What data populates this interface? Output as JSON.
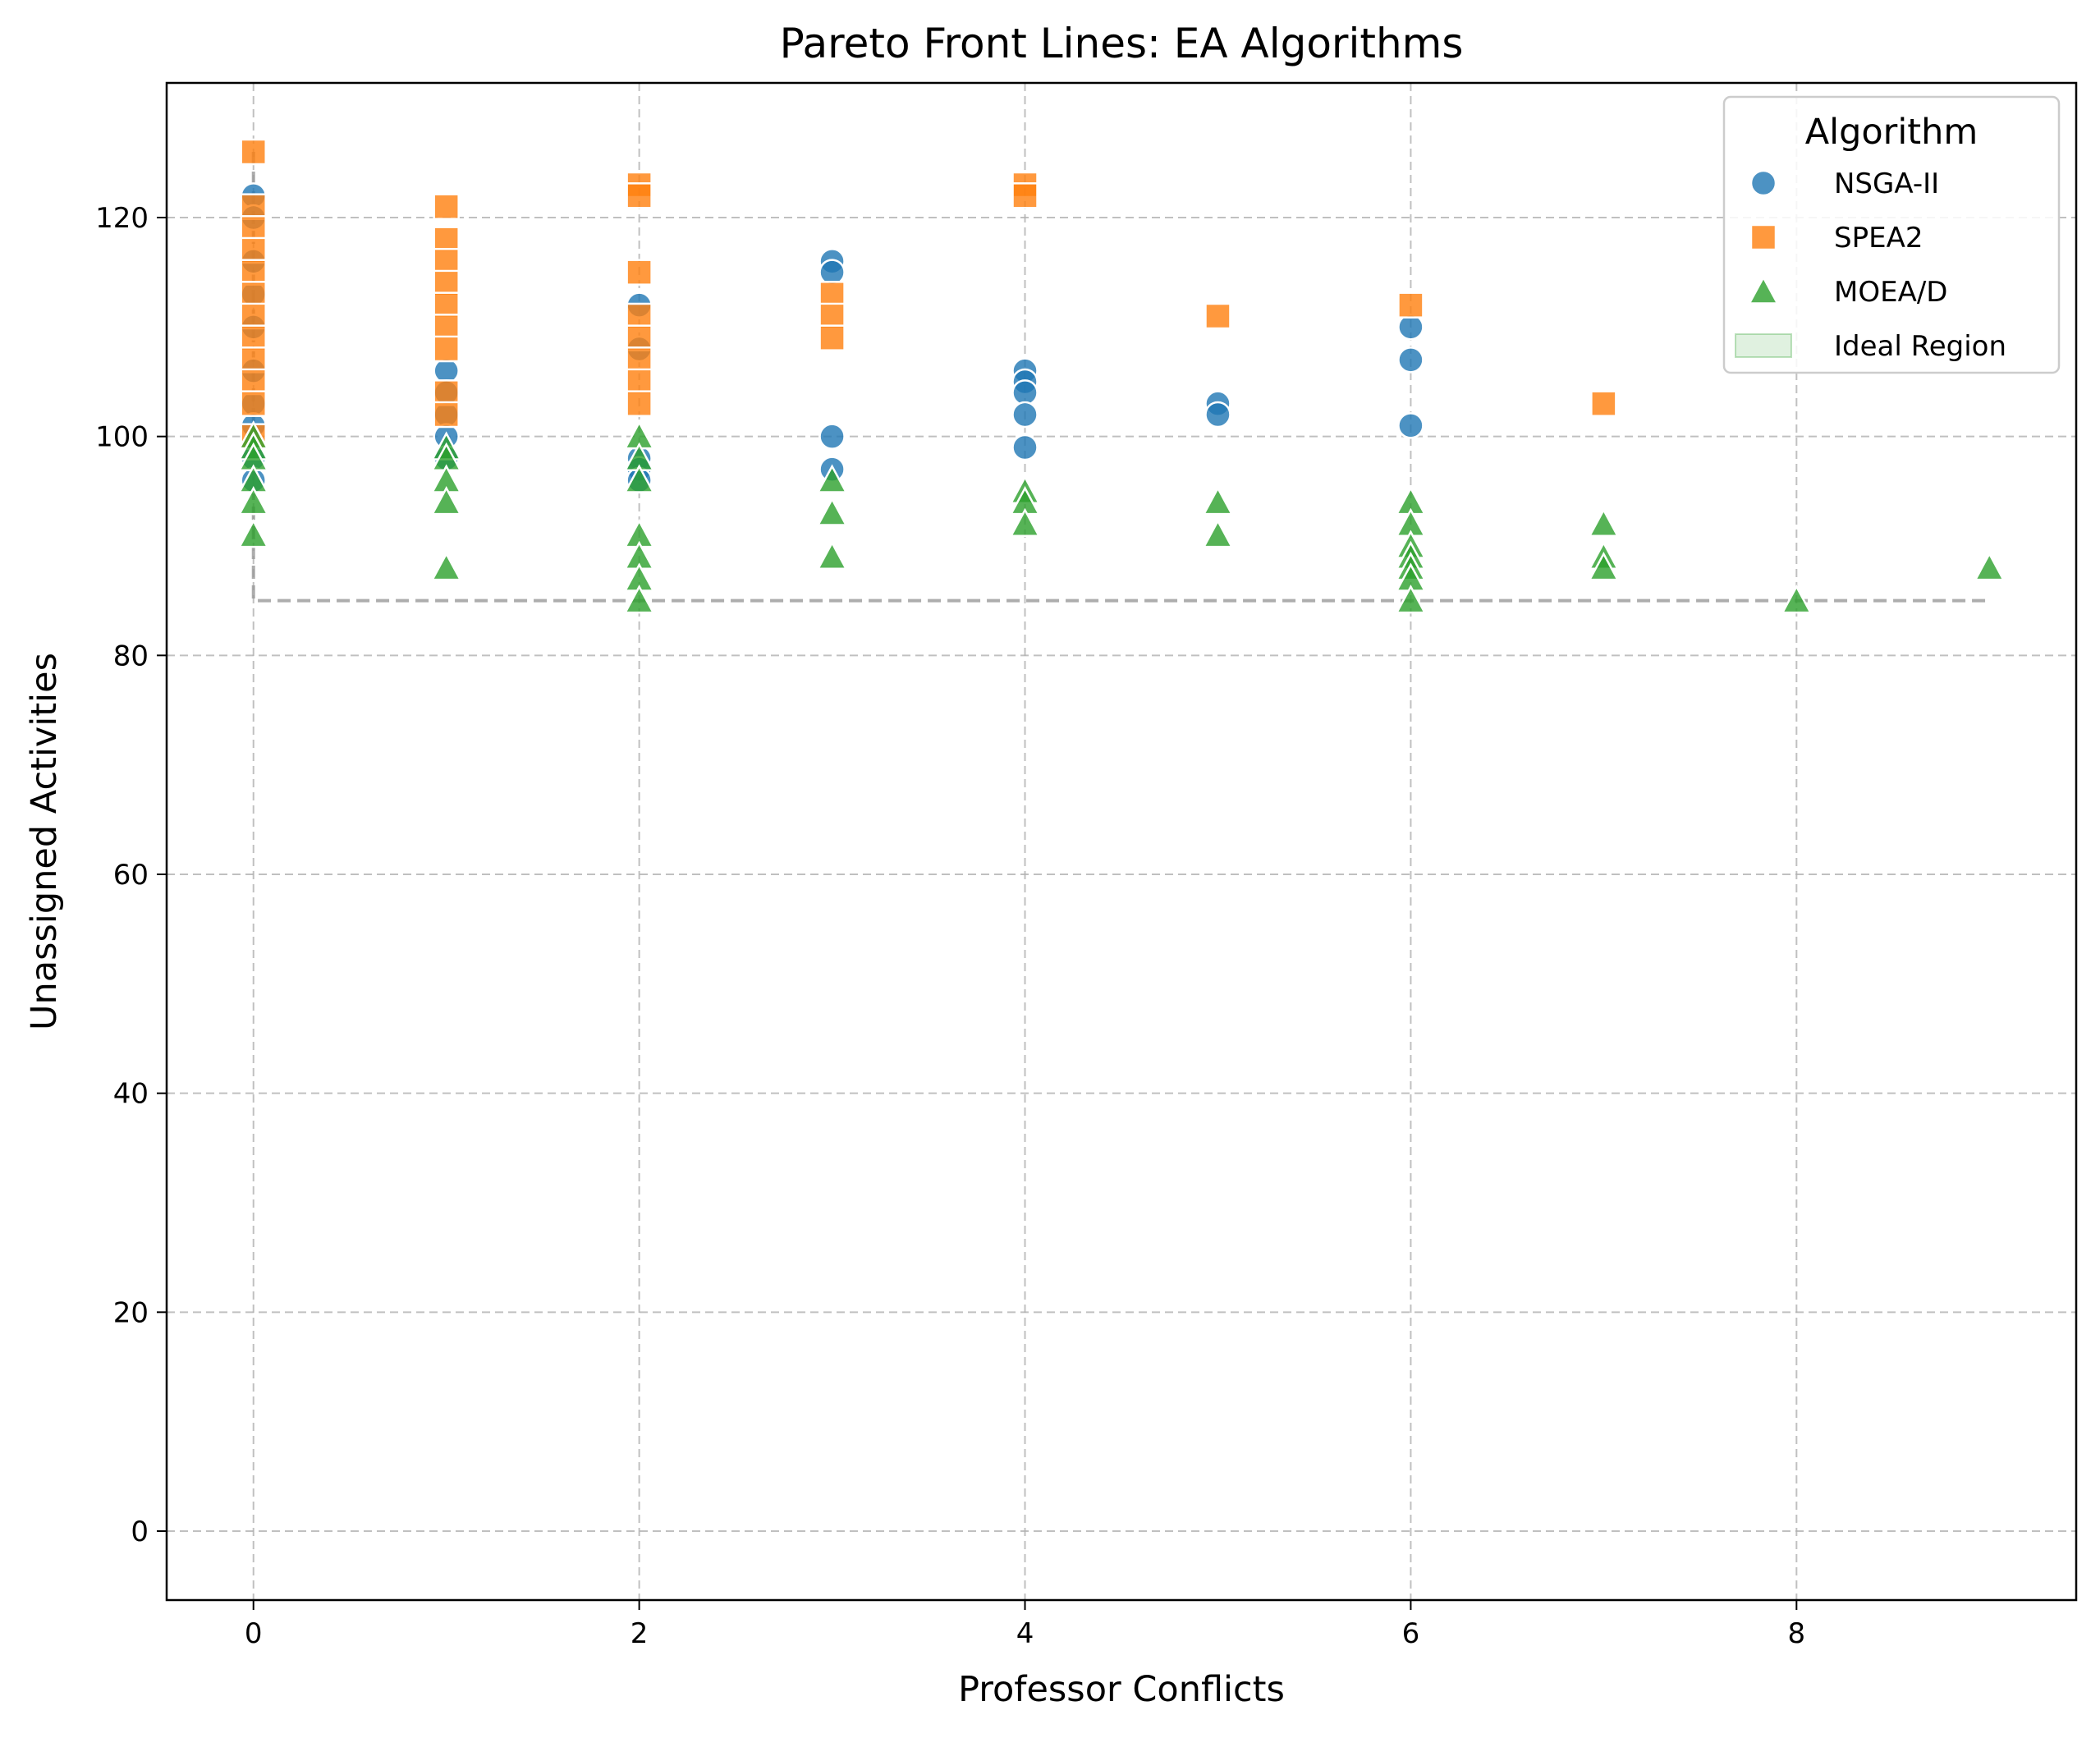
{
  "chart_data": {
    "type": "scatter",
    "title": "Pareto Front Lines: EA Algorithms",
    "xlabel": "Professor Conflicts",
    "ylabel": "Unassigned Activities",
    "xlim": [
      -0.45,
      9.45
    ],
    "ylim": [
      -6.3,
      132.3
    ],
    "xticks": [
      0,
      2,
      4,
      6,
      8
    ],
    "yticks": [
      0,
      20,
      40,
      60,
      80,
      100,
      120
    ],
    "grid": true,
    "legend": {
      "title": "Algorithm",
      "position": "top-right"
    },
    "series": [
      {
        "name": "NSGA-II",
        "marker": "circle",
        "color": "#1f77b4",
        "points": [
          [
            0,
            122
          ],
          [
            0,
            120
          ],
          [
            0,
            116
          ],
          [
            0,
            113
          ],
          [
            0,
            110
          ],
          [
            0,
            106
          ],
          [
            0,
            103
          ],
          [
            0,
            101
          ],
          [
            0,
            98
          ],
          [
            0,
            96
          ],
          [
            1,
            106
          ],
          [
            1,
            104
          ],
          [
            1,
            102
          ],
          [
            1,
            100
          ],
          [
            1,
            98
          ],
          [
            2,
            112
          ],
          [
            2,
            108
          ],
          [
            2,
            98
          ],
          [
            2,
            97
          ],
          [
            2,
            96
          ],
          [
            3,
            116
          ],
          [
            3,
            115
          ],
          [
            3,
            100
          ],
          [
            3,
            97
          ],
          [
            4,
            106
          ],
          [
            4,
            105
          ],
          [
            4,
            104
          ],
          [
            4,
            102
          ],
          [
            4,
            99
          ],
          [
            5,
            103
          ],
          [
            5,
            102
          ],
          [
            6,
            110
          ],
          [
            6,
            107
          ],
          [
            6,
            101
          ]
        ]
      },
      {
        "name": "SPEA2",
        "marker": "square",
        "color": "#ff7f0e",
        "points": [
          [
            0,
            126
          ],
          [
            0,
            121
          ],
          [
            0,
            119
          ],
          [
            0,
            117
          ],
          [
            0,
            115
          ],
          [
            0,
            113
          ],
          [
            0,
            111
          ],
          [
            0,
            109
          ],
          [
            0,
            107
          ],
          [
            0,
            105
          ],
          [
            0,
            103
          ],
          [
            0,
            100
          ],
          [
            1,
            121
          ],
          [
            1,
            118
          ],
          [
            1,
            116
          ],
          [
            1,
            114
          ],
          [
            1,
            112
          ],
          [
            1,
            110
          ],
          [
            1,
            108
          ],
          [
            1,
            104
          ],
          [
            1,
            102
          ],
          [
            2,
            123
          ],
          [
            2,
            122
          ],
          [
            2,
            115
          ],
          [
            2,
            111
          ],
          [
            2,
            109
          ],
          [
            2,
            107
          ],
          [
            2,
            105
          ],
          [
            2,
            103
          ],
          [
            3,
            113
          ],
          [
            3,
            111
          ],
          [
            3,
            109
          ],
          [
            4,
            123
          ],
          [
            4,
            122
          ],
          [
            5,
            111
          ],
          [
            6,
            112
          ],
          [
            7,
            103
          ]
        ]
      },
      {
        "name": "MOEA/D",
        "marker": "triangle",
        "color": "#2ca02c",
        "points": [
          [
            0,
            100
          ],
          [
            0,
            99
          ],
          [
            0,
            98
          ],
          [
            0,
            96
          ],
          [
            0,
            94
          ],
          [
            0,
            91
          ],
          [
            1,
            99
          ],
          [
            1,
            98
          ],
          [
            1,
            96
          ],
          [
            1,
            94
          ],
          [
            1,
            88
          ],
          [
            2,
            100
          ],
          [
            2,
            98
          ],
          [
            2,
            96
          ],
          [
            2,
            91
          ],
          [
            2,
            89
          ],
          [
            2,
            87
          ],
          [
            2,
            85
          ],
          [
            3,
            96
          ],
          [
            3,
            93
          ],
          [
            3,
            89
          ],
          [
            4,
            95
          ],
          [
            4,
            94
          ],
          [
            4,
            92
          ],
          [
            5,
            94
          ],
          [
            5,
            91
          ],
          [
            6,
            94
          ],
          [
            6,
            92
          ],
          [
            6,
            90
          ],
          [
            6,
            89
          ],
          [
            6,
            88
          ],
          [
            6,
            87
          ],
          [
            6,
            85
          ],
          [
            7,
            92
          ],
          [
            7,
            89
          ],
          [
            7,
            88
          ],
          [
            8,
            85
          ],
          [
            9,
            88
          ]
        ]
      }
    ],
    "ideal_region": {
      "name": "Ideal Region",
      "color": "#2ca02c",
      "x": [
        0,
        0
      ],
      "y": [
        0,
        0
      ]
    },
    "reference_line": {
      "style": "dashed",
      "color": "#999999",
      "points": [
        [
          0,
          126
        ],
        [
          0,
          85
        ],
        [
          9,
          85
        ]
      ]
    }
  }
}
